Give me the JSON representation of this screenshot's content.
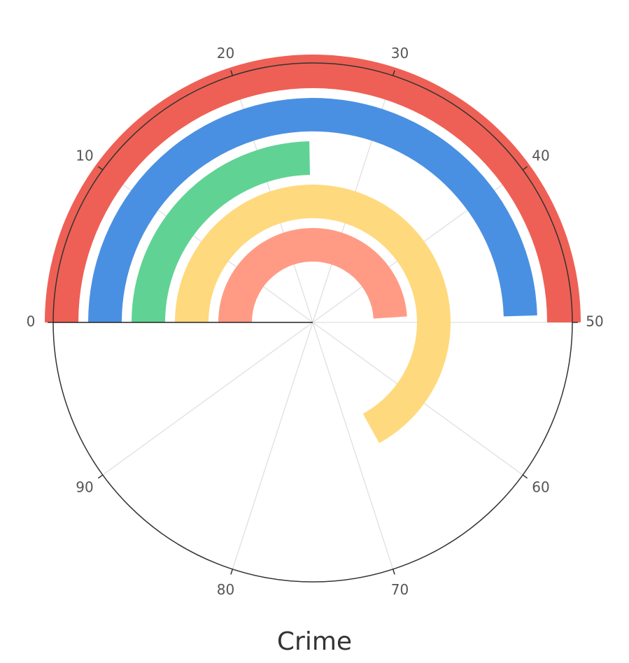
{
  "chart_data": {
    "type": "polar-bar",
    "title": "Crime",
    "angle_axis": {
      "min": 0,
      "max": 100,
      "ticks": [
        0,
        10,
        20,
        30,
        40,
        50,
        60,
        70,
        80,
        90
      ],
      "tick_labels": [
        "0",
        "10",
        "20",
        "30",
        "40",
        "50",
        "60",
        "70",
        "80",
        "90"
      ],
      "start_at": "left",
      "direction": "clockwise"
    },
    "grid": true,
    "series": [
      {
        "value": 50,
        "color": "#EE6055"
      },
      {
        "value": 49.5,
        "color": "#4A90E2"
      },
      {
        "value": 24.7,
        "color": "#60D394"
      },
      {
        "value": 67,
        "color": "#FFD97D"
      },
      {
        "value": 49,
        "color": "#FF9B85"
      }
    ]
  }
}
